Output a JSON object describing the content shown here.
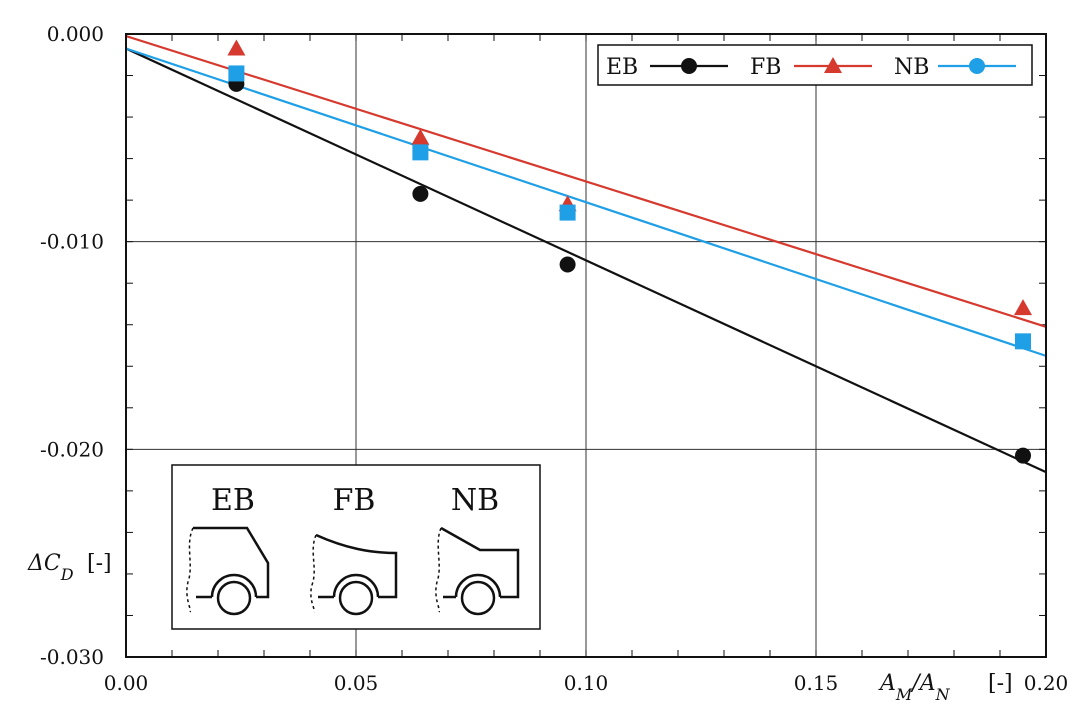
{
  "chart_data": {
    "type": "scatter",
    "xlabel": "A_M/A_N [-]",
    "ylabel": "ΔC_D [-]",
    "xlim": [
      0.0,
      0.2
    ],
    "ylim": [
      -0.03,
      0.0
    ],
    "x_ticks": [
      "0.00",
      "0.05",
      "0.10",
      "0.15",
      "0.20"
    ],
    "y_ticks": [
      "0.000",
      "-0.010",
      "-0.020",
      "-0.030"
    ],
    "grid": true,
    "legend_position": "top-right",
    "series": [
      {
        "name": "EB",
        "marker": "circle",
        "color": "#111111",
        "points": [
          [
            0.024,
            -0.0024
          ],
          [
            0.064,
            -0.0077
          ],
          [
            0.096,
            -0.0111
          ],
          [
            0.195,
            -0.0203
          ]
        ],
        "fit": {
          "x": [
            0.0,
            0.2
          ],
          "y": [
            -0.0007,
            -0.0211
          ]
        }
      },
      {
        "name": "FB",
        "marker": "triangle",
        "color": "#d63a2f",
        "points": [
          [
            0.024,
            -0.0007
          ],
          [
            0.064,
            -0.005
          ],
          [
            0.096,
            -0.0082
          ],
          [
            0.195,
            -0.0132
          ]
        ],
        "fit": {
          "x": [
            0.0,
            0.2
          ],
          "y": [
            -0.0001,
            -0.0141
          ]
        }
      },
      {
        "name": "NB",
        "marker": "square",
        "color": "#1e9fe6",
        "points": [
          [
            0.024,
            -0.0019
          ],
          [
            0.064,
            -0.0057
          ],
          [
            0.096,
            -0.0086
          ],
          [
            0.195,
            -0.0148
          ]
        ],
        "fit": {
          "x": [
            0.0,
            0.2
          ],
          "y": [
            -0.0007,
            -0.0155
          ]
        }
      }
    ],
    "inset": {
      "labels": [
        "EB",
        "FB",
        "NB"
      ]
    }
  }
}
